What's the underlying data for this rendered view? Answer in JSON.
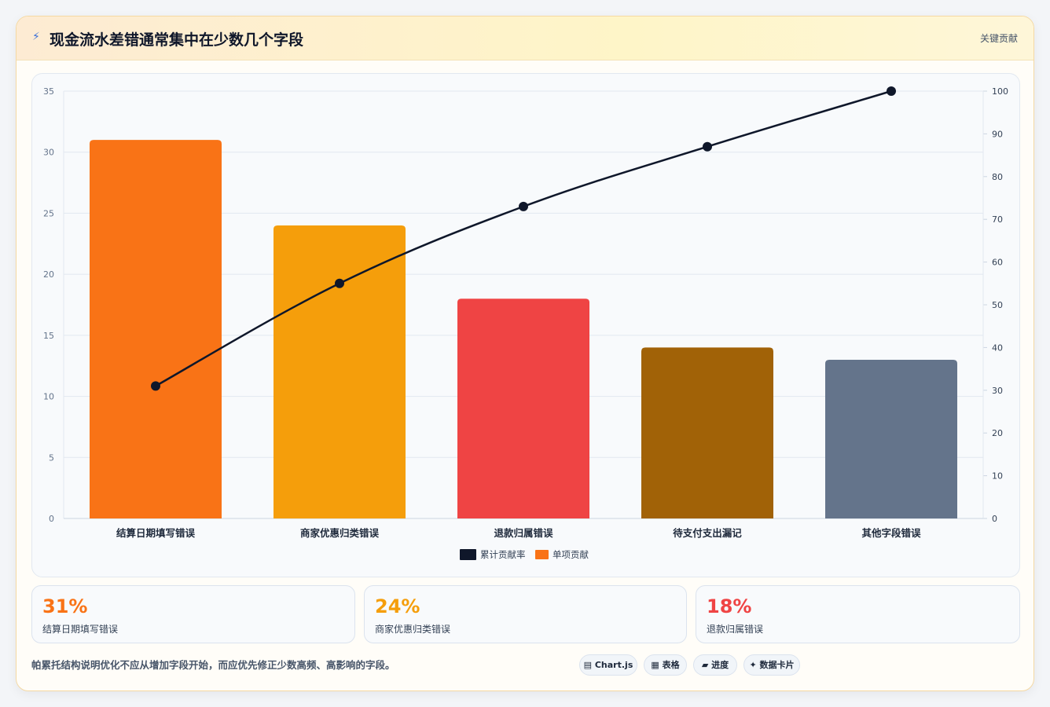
{
  "header": {
    "icon": "lightning-icon",
    "title": "现金流水差错通常集中在少数几个字段",
    "badge": "关键贡献"
  },
  "chart_data": {
    "type": "bar",
    "categories": [
      "结算日期填写错误",
      "商家优惠归类错误",
      "退款归属错误",
      "待支付支出漏记",
      "其他字段错误"
    ],
    "values": [
      31,
      24,
      18,
      14,
      13
    ],
    "bar_colors": [
      "#f97316",
      "#f59e0b",
      "#ef4444",
      "#a16207",
      "#64748b"
    ],
    "cumulative": [
      31,
      55,
      73,
      87,
      100
    ],
    "line_color": "#0f172a",
    "ylim": [
      0,
      35
    ],
    "yticks": [
      0,
      5,
      10,
      15,
      20,
      25,
      30,
      35
    ],
    "y2lim": [
      0,
      100
    ],
    "y2ticks": [
      0,
      10,
      20,
      30,
      40,
      50,
      60,
      70,
      80,
      90,
      100
    ],
    "grid": true,
    "legend_position": "bottom",
    "legend": [
      {
        "label": "累计贡献率",
        "color": "#0f172a"
      },
      {
        "label": "单项贡献",
        "color": "#f97316"
      }
    ]
  },
  "kpis": [
    {
      "value": "31%",
      "label": "结算日期填写错误",
      "color": "#f97316"
    },
    {
      "value": "24%",
      "label": "商家优惠归类错误",
      "color": "#f59e0b"
    },
    {
      "value": "18%",
      "label": "退款归属错误",
      "color": "#ef4444"
    }
  ],
  "footer": {
    "note": "帕累托结构说明优化不应从增加字段开始，而应优先修正少数高频、高影响的字段。",
    "chips": [
      {
        "label": "Chart.js",
        "icon": "chart-icon",
        "glyph": "▤"
      },
      {
        "label": "表格",
        "icon": "table-icon",
        "glyph": "▦"
      },
      {
        "label": "进度",
        "icon": "progress-icon",
        "glyph": "▰"
      },
      {
        "label": "数据卡片",
        "icon": "sparkle-icon",
        "glyph": "✦"
      }
    ]
  }
}
